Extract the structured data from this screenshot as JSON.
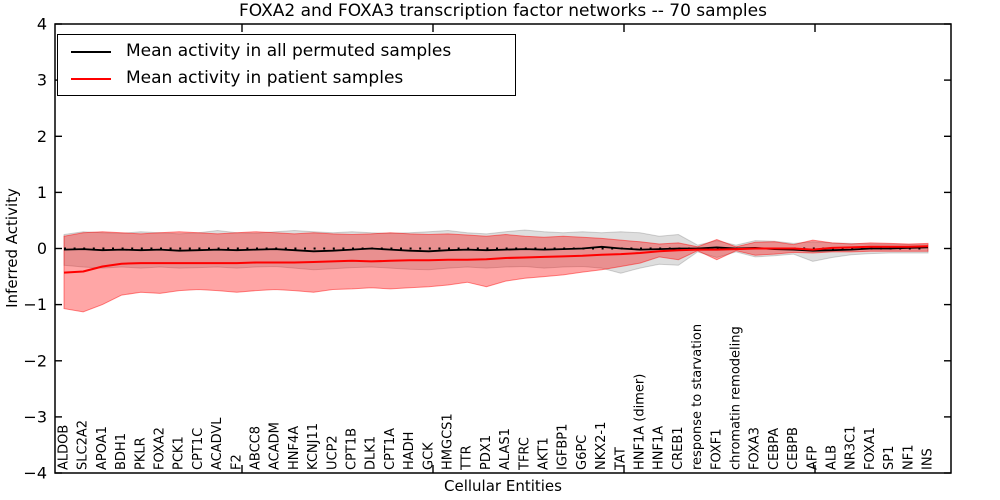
{
  "title": "FOXA2 and FOXA3 transcription factor networks -- 70 samples",
  "axes": {
    "ylabel": "Inferred Activity",
    "xlabel": "Cellular Entities",
    "yticks": [
      4,
      3,
      2,
      1,
      0,
      -1,
      -2,
      -3,
      -4
    ],
    "ylim": [
      -4,
      4
    ]
  },
  "legend": {
    "entries": [
      {
        "label": "Mean activity in all permuted samples",
        "color": "#000000"
      },
      {
        "label": "Mean activity in patient samples",
        "color": "#ff0000"
      }
    ],
    "position": "upper left"
  },
  "chart_data": {
    "type": "line",
    "title": "FOXA2 and FOXA3 transcription factor networks -- 70 samples",
    "xlabel": "Cellular Entities",
    "ylabel": "Inferred Activity",
    "ylim": [
      -4,
      4
    ],
    "grid": false,
    "legend_position": "upper left",
    "categories": [
      "ALDOB",
      "SLC2A2",
      "APOA1",
      "BDH1",
      "PKLR",
      "FOXA2",
      "PCK1",
      "CPT1C",
      "ACADVL",
      "F2",
      "ABCC8",
      "ACADM",
      "HNF4A",
      "KCNJ11",
      "UCP2",
      "CPT1B",
      "DLK1",
      "CPT1A",
      "HADH",
      "GCK",
      "HMGCS1",
      "TTR",
      "PDX1",
      "ALAS1",
      "TFRC",
      "AKT1",
      "IGFBP1",
      "G6PC",
      "NKX2-1",
      "TAT",
      "HNF1A (dimer)",
      "HNF1A",
      "CREB1",
      "response to starvation",
      "FOXF1",
      "chromatin remodeling",
      "FOXA3",
      "CEBPA",
      "CEBPB",
      "AFP",
      "ALB",
      "NR3C1",
      "FOXA1",
      "SP1",
      "NF1",
      "INS"
    ],
    "series": [
      {
        "name": "Mean activity in all permuted samples",
        "color": "#000000",
        "style": "solid",
        "values": [
          -0.02,
          -0.01,
          -0.03,
          -0.02,
          -0.03,
          -0.02,
          -0.04,
          -0.03,
          -0.02,
          -0.03,
          -0.02,
          -0.01,
          -0.03,
          -0.05,
          -0.04,
          -0.02,
          0,
          -0.02,
          -0.04,
          -0.05,
          -0.03,
          -0.02,
          -0.03,
          -0.02,
          -0.01,
          -0.02,
          -0.01,
          0,
          0.03,
          0,
          -0.02,
          -0.01,
          0,
          0,
          0.02,
          0,
          0.01,
          -0.01,
          -0.02,
          -0.04,
          -0.03,
          -0.02,
          0,
          0,
          0.01,
          0.02
        ]
      },
      {
        "name": "Mean activity in patient samples",
        "color": "#ff0000",
        "style": "solid",
        "values": [
          -0.43,
          -0.41,
          -0.32,
          -0.27,
          -0.26,
          -0.26,
          -0.26,
          -0.26,
          -0.26,
          -0.26,
          -0.25,
          -0.25,
          -0.25,
          -0.24,
          -0.23,
          -0.22,
          -0.23,
          -0.22,
          -0.21,
          -0.21,
          -0.2,
          -0.2,
          -0.19,
          -0.17,
          -0.16,
          -0.15,
          -0.14,
          -0.13,
          -0.11,
          -0.1,
          -0.08,
          -0.05,
          -0.03,
          -0.02,
          -0.02,
          -0.01,
          0,
          0,
          0,
          -0.02,
          0.01,
          0.02,
          0.03,
          0.03,
          0.03,
          0.04
        ]
      },
      {
        "name": "zero reference (dotted)",
        "color": "#000000",
        "style": "dotted",
        "values": [
          0,
          0,
          0,
          0,
          0,
          0,
          0,
          0,
          0,
          0,
          0,
          0,
          0,
          0,
          0,
          0,
          0,
          0,
          0,
          0,
          0,
          0,
          0,
          0,
          0,
          0,
          0,
          0,
          0,
          0,
          0,
          0,
          0,
          0,
          0,
          0,
          0,
          0,
          0,
          0,
          0,
          0,
          0,
          0,
          0,
          0
        ]
      }
    ],
    "bands": [
      {
        "name": "permuted samples range",
        "fill": "rgba(0,0,0,0.13)",
        "edge": "rgba(0,0,0,0.16)",
        "upper": [
          0.25,
          0.3,
          0.28,
          0.27,
          0.3,
          0.28,
          0.26,
          0.28,
          0.32,
          0.28,
          0.27,
          0.3,
          0.32,
          0.3,
          0.28,
          0.3,
          0.28,
          0.27,
          0.28,
          0.3,
          0.32,
          0.28,
          0.26,
          0.3,
          0.33,
          0.3,
          0.28,
          0.3,
          0.28,
          0.3,
          0.28,
          0.22,
          0.25,
          0.06,
          0.14,
          0.06,
          0.14,
          0.13,
          0.09,
          0.12,
          0.1,
          0.09,
          0.08,
          0.08,
          0.07,
          0.07
        ],
        "lower": [
          -0.3,
          -0.33,
          -0.35,
          -0.33,
          -0.35,
          -0.33,
          -0.35,
          -0.34,
          -0.33,
          -0.35,
          -0.33,
          -0.32,
          -0.35,
          -0.38,
          -0.36,
          -0.34,
          -0.33,
          -0.35,
          -0.37,
          -0.38,
          -0.35,
          -0.33,
          -0.35,
          -0.33,
          -0.32,
          -0.35,
          -0.33,
          -0.32,
          -0.35,
          -0.44,
          -0.35,
          -0.28,
          -0.3,
          -0.06,
          -0.16,
          -0.06,
          -0.15,
          -0.13,
          -0.1,
          -0.23,
          -0.16,
          -0.11,
          -0.09,
          -0.08,
          -0.08,
          -0.08
        ]
      },
      {
        "name": "patient samples range",
        "fill": "rgba(255,0,0,0.35)",
        "edge": "rgba(255,0,0,0.45)",
        "upper": [
          0.22,
          0.28,
          0.3,
          0.28,
          0.26,
          0.28,
          0.3,
          0.28,
          0.26,
          0.28,
          0.3,
          0.28,
          0.26,
          0.28,
          0.26,
          0.25,
          0.26,
          0.28,
          0.26,
          0.25,
          0.26,
          0.24,
          0.22,
          0.25,
          0.22,
          0.2,
          0.22,
          0.2,
          0.18,
          0.15,
          0.12,
          0.08,
          0.1,
          0.03,
          0.16,
          0.03,
          0.11,
          0.12,
          0.07,
          0.15,
          0.1,
          0.08,
          0.1,
          0.09,
          0.08,
          0.09
        ],
        "lower": [
          -1.07,
          -1.13,
          -1.0,
          -0.83,
          -0.78,
          -0.8,
          -0.75,
          -0.73,
          -0.75,
          -0.78,
          -0.75,
          -0.73,
          -0.75,
          -0.78,
          -0.73,
          -0.72,
          -0.7,
          -0.72,
          -0.7,
          -0.68,
          -0.65,
          -0.6,
          -0.68,
          -0.58,
          -0.53,
          -0.5,
          -0.47,
          -0.42,
          -0.38,
          -0.32,
          -0.26,
          -0.15,
          -0.2,
          -0.04,
          -0.2,
          -0.04,
          -0.12,
          -0.1,
          -0.07,
          -0.08,
          -0.06,
          -0.06,
          -0.05,
          -0.05,
          -0.05,
          -0.05
        ]
      }
    ]
  }
}
